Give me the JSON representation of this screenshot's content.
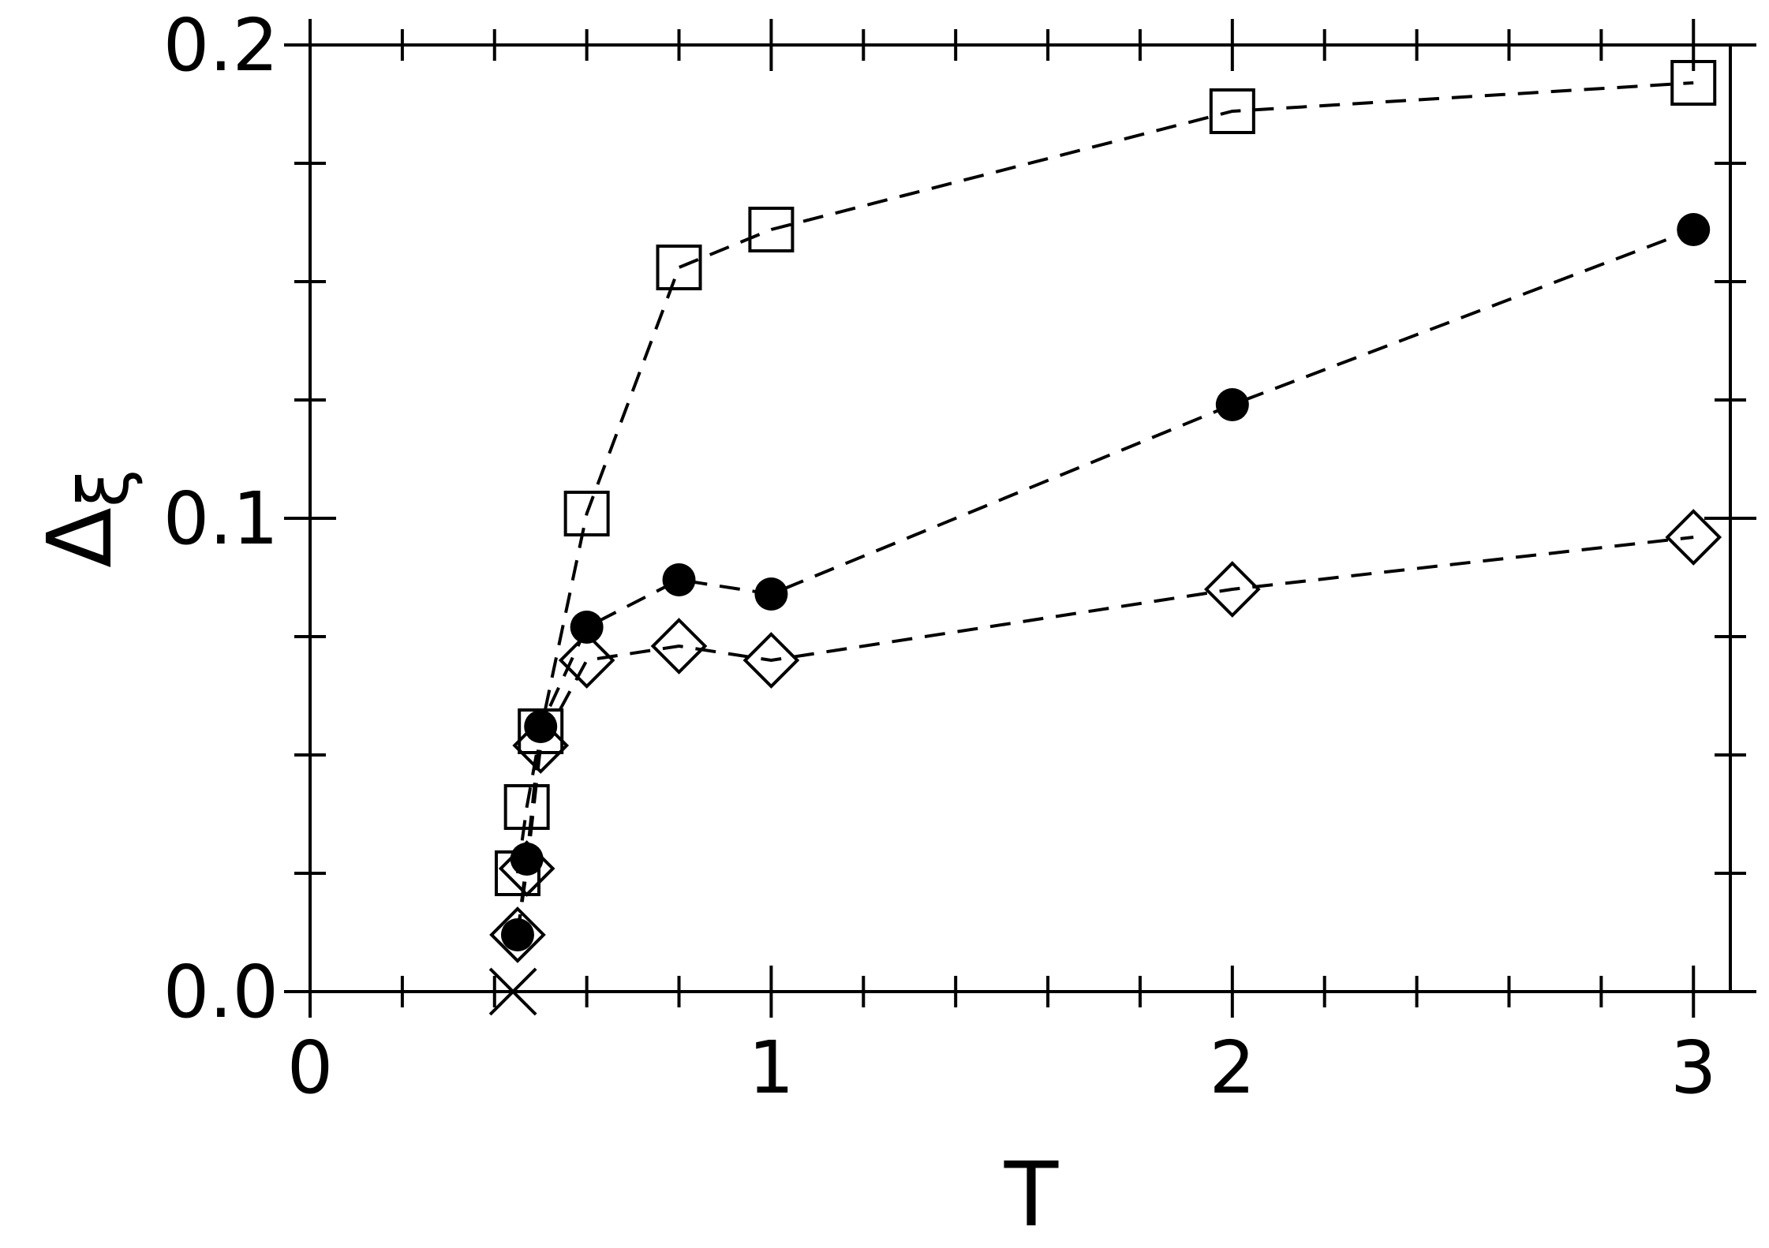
{
  "chart_data": {
    "type": "scatter",
    "xlabel": "T",
    "ylabel": {
      "main": "Δ",
      "subscript": "ξ"
    },
    "xlim": [
      0,
      3.08
    ],
    "ylim": [
      0,
      0.2
    ],
    "x_ticks": [
      {
        "value": 0,
        "label": "0"
      },
      {
        "value": 1,
        "label": "1"
      },
      {
        "value": 2,
        "label": "2"
      },
      {
        "value": 3,
        "label": "3"
      }
    ],
    "y_ticks": [
      {
        "value": 0,
        "label": "0.0"
      },
      {
        "value": 0.1,
        "label": "0.1"
      },
      {
        "value": 0.2,
        "label": "0.2"
      }
    ],
    "x_minor_step": 0.2,
    "y_minor_step": 0.025,
    "grid": false,
    "line_style": "dashed",
    "series": [
      {
        "marker": "open-square",
        "x": [
          0.45,
          0.47,
          0.5,
          0.6,
          0.8,
          1.0,
          2.0,
          3.0
        ],
        "y": [
          0.025,
          0.039,
          0.055,
          0.101,
          0.153,
          0.161,
          0.186,
          0.192
        ]
      },
      {
        "marker": "filled-circle",
        "x": [
          0.45,
          0.47,
          0.5,
          0.6,
          0.8,
          1.0,
          2.0,
          3.0
        ],
        "y": [
          0.012,
          0.028,
          0.056,
          0.077,
          0.087,
          0.084,
          0.124,
          0.161
        ]
      },
      {
        "marker": "open-diamond",
        "x": [
          0.45,
          0.47,
          0.5,
          0.6,
          0.8,
          1.0,
          2.0,
          3.0
        ],
        "y": [
          0.012,
          0.026,
          0.052,
          0.07,
          0.073,
          0.07,
          0.085,
          0.096
        ]
      },
      {
        "marker": "cross",
        "x": [
          0.44
        ],
        "y": [
          0
        ]
      }
    ]
  }
}
